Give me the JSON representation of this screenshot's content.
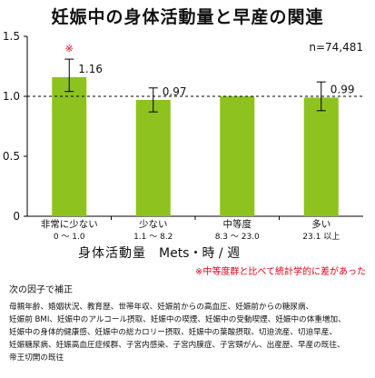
{
  "chart_data": {
    "type": "bar",
    "title": "妊娠中の身体活動量と早産の関連",
    "sample_size_label": "n=74,481",
    "xlabel_main": "身体活動量",
    "xlabel_unit": "Mets・時 / 週",
    "ylim": [
      0,
      1.5
    ],
    "yticks": [
      "0",
      "0.5",
      "1.0",
      "1.5"
    ],
    "reference_line": 1.0,
    "categories": [
      {
        "label": "非常に少ない",
        "range": "0 〜 1.0"
      },
      {
        "label": "少ない",
        "range": "1.1 〜 8.2"
      },
      {
        "label": "中等度",
        "range": "8.3 〜 23.0"
      },
      {
        "label": "多い",
        "range": "23.1 以上"
      }
    ],
    "values": [
      1.16,
      0.97,
      1.0,
      0.99
    ],
    "value_labels": [
      "1.16",
      "0.97",
      "",
      "0.99"
    ],
    "error_low": [
      1.04,
      0.87,
      null,
      0.88
    ],
    "error_high": [
      1.31,
      1.07,
      null,
      1.12
    ],
    "significance_markers": [
      "※",
      "",
      "",
      ""
    ],
    "bar_color": "#8dc21f",
    "marker_color": "#e60012",
    "significance_note": "※中等度群と比べて統計学的に差があった"
  },
  "footnote": {
    "heading": "次の因子で補正",
    "lines": [
      "母親年齢、婚姻状況、教育歴、世帯年収、妊娠前からの高血圧、妊娠前からの糖尿病、",
      "妊娠前 BMI、妊娠中のアルコール摂取、妊娠中の喫煙、妊娠中の受動喫煙、妊娠中の体重増加、",
      "妊娠中の身体的健康感、妊娠中の総カロリー摂取、妊娠中の葉酸摂取、切迫流産、切迫早産、",
      "妊娠糖尿病、妊娠高血圧症候群、子宮内感染、子宮内膜症、子宮頸がん、出産歴、早産の既往、",
      "帝王切開の既往"
    ]
  }
}
